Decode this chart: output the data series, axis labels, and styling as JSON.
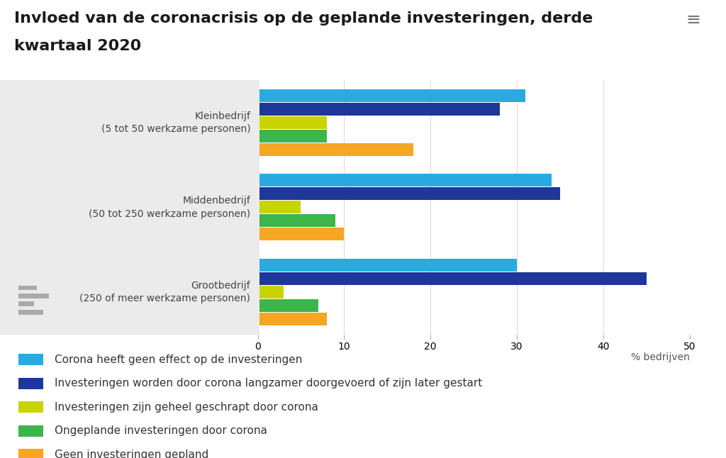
{
  "title_line1": "Invloed van de coronacrisis op de geplande investeringen, derde",
  "title_line2": "kwartaal 2020",
  "categories": [
    "Kleinbedrijf\n(5 tot 50 werkzame personen)",
    "Middenbedrijf\n(50 tot 250 werkzame personen)",
    "Grootbedrijf\n(250 of meer werkzame personen)"
  ],
  "series": [
    {
      "label": "Corona heeft geen effect op de investeringen",
      "color": "#29ABE2",
      "values": [
        31,
        34,
        30
      ]
    },
    {
      "label": "Investeringen worden door corona langzamer doorgevoerd of zijn later gestart",
      "color": "#1E3799",
      "values": [
        28,
        35,
        45
      ]
    },
    {
      "label": "Investeringen zijn geheel geschrapt door corona",
      "color": "#C8D400",
      "values": [
        8,
        5,
        3
      ]
    },
    {
      "label": "Ongeplande investeringen door corona",
      "color": "#3CB54A",
      "values": [
        8,
        9,
        7
      ]
    },
    {
      "label": "Geen investeringen gepland",
      "color": "#F5A623",
      "values": [
        18,
        10,
        8
      ]
    }
  ],
  "xlim": [
    0,
    50
  ],
  "xticks": [
    0,
    10,
    20,
    30,
    40,
    50
  ],
  "xlabel": "% bedrijven",
  "background_color": "#FFFFFF",
  "gray_bg_color": "#EBEBEB",
  "title_color": "#1A1A1A",
  "axis_label_color": "#555555",
  "grid_color": "#DDDDDD",
  "title_fontsize": 16,
  "label_fontsize": 10,
  "legend_fontsize": 11
}
